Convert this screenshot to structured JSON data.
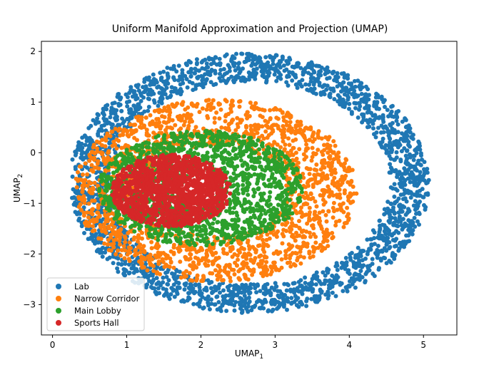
{
  "chart_data": {
    "type": "scatter",
    "title": "Uniform Manifold Approximation and Projection (UMAP)",
    "xlabel": "UMAP",
    "xlabel_sub": "1",
    "ylabel": "UMAP",
    "ylabel_sub": "2",
    "xlim": [
      -0.15,
      5.45
    ],
    "ylim": [
      -3.6,
      2.2
    ],
    "xticks": [
      0,
      1,
      2,
      3,
      4,
      5
    ],
    "yticks": [
      -3,
      -2,
      -1,
      0,
      1,
      2
    ],
    "grid": false,
    "legend_position": "lower-left",
    "series": [
      {
        "name": "Lab",
        "color": "#1f77b4",
        "center": [
          2.65,
          -0.6
        ],
        "radius": [
          2.55,
          2.7
        ],
        "inner": 0.78,
        "count": 2200
      },
      {
        "name": "Narrow Corridor",
        "color": "#ff7f0e",
        "center": [
          2.2,
          -0.75
        ],
        "radius": [
          2.0,
          1.9
        ],
        "inner": 0.5,
        "count": 1800
      },
      {
        "name": "Main Lobby",
        "color": "#2ca02c",
        "center": [
          2.0,
          -0.7
        ],
        "radius": [
          1.45,
          1.2
        ],
        "inner": 0.2,
        "count": 1500
      },
      {
        "name": "Sports Hall",
        "color": "#d62728",
        "center": [
          1.6,
          -0.75
        ],
        "radius": [
          0.85,
          0.75
        ],
        "inner": 0.0,
        "count": 1300
      }
    ]
  }
}
